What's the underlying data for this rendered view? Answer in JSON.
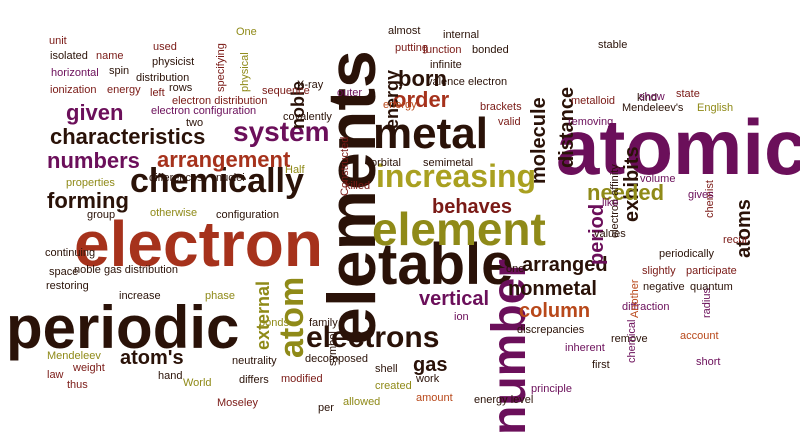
{
  "palette": {
    "background": "#ffffff",
    "purple": "#6b0f5a",
    "magenta": "#8a1a6c",
    "dark_red": "#7a1a16",
    "brick": "#a6321c",
    "rust": "#b8481a",
    "dark_brown": "#2a1208",
    "olive": "#8f8a18",
    "olive_light": "#a9a020"
  },
  "words": [
    {
      "text": "elements",
      "color": "dark_brown",
      "size": 68,
      "bold": true,
      "vertical": true
    },
    {
      "text": "atomic",
      "color": "purple",
      "size": 78,
      "bold": true
    },
    {
      "text": "electron",
      "color": "brick",
      "size": 64,
      "bold": true
    },
    {
      "text": "periodic",
      "color": "dark_brown",
      "size": 60,
      "bold": true
    },
    {
      "text": "table",
      "color": "dark_brown",
      "size": 58,
      "bold": true
    },
    {
      "text": "element",
      "color": "olive",
      "size": 46,
      "bold": true
    },
    {
      "text": "metal",
      "color": "dark_brown",
      "size": 44,
      "bold": true
    },
    {
      "text": "number",
      "color": "purple",
      "size": 48,
      "bold": true,
      "vertical": true
    },
    {
      "text": "increasing",
      "color": "olive_light",
      "size": 32,
      "bold": true
    },
    {
      "text": "chemically",
      "color": "dark_brown",
      "size": 34,
      "bold": true
    },
    {
      "text": "electrons",
      "color": "dark_brown",
      "size": 30,
      "bold": true
    },
    {
      "text": "atom",
      "color": "olive",
      "size": 34,
      "bold": true,
      "vertical": true
    },
    {
      "text": "characteristics",
      "color": "dark_brown",
      "size": 22,
      "bold": true
    },
    {
      "text": "system",
      "color": "purple",
      "size": 28,
      "bold": true
    },
    {
      "text": "arrangement",
      "color": "brick",
      "size": 22,
      "bold": true
    },
    {
      "text": "numbers",
      "color": "purple",
      "size": 22,
      "bold": true
    },
    {
      "text": "given",
      "color": "purple",
      "size": 22,
      "bold": true
    },
    {
      "text": "born",
      "color": "dark_brown",
      "size": 22,
      "bold": true
    },
    {
      "text": "order",
      "color": "brick",
      "size": 22,
      "bold": true
    },
    {
      "text": "forming",
      "color": "dark_brown",
      "size": 22,
      "bold": true
    },
    {
      "text": "behaves",
      "color": "dark_red",
      "size": 20,
      "bold": true
    },
    {
      "text": "exhibits",
      "color": "dark_brown",
      "size": 20,
      "bold": true
    },
    {
      "text": "needed",
      "color": "olive",
      "size": 22,
      "bold": true
    },
    {
      "text": "arranged",
      "color": "dark_brown",
      "size": 20,
      "bold": true
    },
    {
      "text": "nonmetal",
      "color": "dark_brown",
      "size": 20,
      "bold": true
    },
    {
      "text": "column",
      "color": "rust",
      "size": 20,
      "bold": true
    },
    {
      "text": "vertical",
      "color": "purple",
      "size": 20,
      "bold": true
    },
    {
      "text": "atom's",
      "color": "dark_brown",
      "size": 20,
      "bold": true
    },
    {
      "text": "gas",
      "color": "dark_brown",
      "size": 20,
      "bold": true
    },
    {
      "text": "molecule",
      "color": "dark_brown",
      "size": 20,
      "bold": true,
      "vertical": true
    },
    {
      "text": "distance",
      "color": "dark_brown",
      "size": 20,
      "bold": true,
      "vertical": true
    },
    {
      "text": "period",
      "color": "purple",
      "size": 20,
      "bold": true,
      "vertical": true
    },
    {
      "text": "atoms",
      "color": "dark_brown",
      "size": 20,
      "bold": true,
      "vertical": true
    },
    {
      "text": "noble",
      "color": "dark_brown",
      "size": 18,
      "bold": true,
      "vertical": true
    },
    {
      "text": "energy",
      "color": "dark_brown",
      "size": 18,
      "bold": true,
      "vertical": true
    },
    {
      "text": "external",
      "color": "olive",
      "size": 18,
      "bold": true,
      "vertical": true
    },
    {
      "text": "outer",
      "color": "purple",
      "size": 11
    },
    {
      "text": "unit",
      "color": "dark_red",
      "size": 11
    },
    {
      "text": "isolated",
      "color": "dark_brown",
      "size": 11
    },
    {
      "text": "name",
      "color": "dark_red",
      "size": 11
    },
    {
      "text": "used",
      "color": "dark_red",
      "size": 11
    },
    {
      "text": "physicist",
      "color": "dark_brown",
      "size": 11
    },
    {
      "text": "horizontal",
      "color": "purple",
      "size": 11
    },
    {
      "text": "spin",
      "color": "dark_brown",
      "size": 11
    },
    {
      "text": "ionization",
      "color": "dark_red",
      "size": 11
    },
    {
      "text": "energy",
      "color": "dark_red",
      "size": 11
    },
    {
      "text": "left",
      "color": "dark_red",
      "size": 11
    },
    {
      "text": "distribution",
      "color": "dark_brown",
      "size": 11
    },
    {
      "text": "rows",
      "color": "dark_brown",
      "size": 11
    },
    {
      "text": "electron distribution",
      "color": "dark_red",
      "size": 11
    },
    {
      "text": "electron configuration",
      "color": "purple",
      "size": 11
    },
    {
      "text": "two",
      "color": "dark_brown",
      "size": 11
    },
    {
      "text": "Half",
      "color": "olive",
      "size": 11
    },
    {
      "text": "differences",
      "color": "dark_brown",
      "size": 11
    },
    {
      "text": "nuclei",
      "color": "dark_brown",
      "size": 11
    },
    {
      "text": "properties",
      "color": "olive",
      "size": 11
    },
    {
      "text": "group",
      "color": "dark_brown",
      "size": 11
    },
    {
      "text": "otherwise",
      "color": "olive",
      "size": 11
    },
    {
      "text": "configuration",
      "color": "dark_brown",
      "size": 11
    },
    {
      "text": "continuing",
      "color": "dark_brown",
      "size": 11
    },
    {
      "text": "space",
      "color": "dark_brown",
      "size": 11
    },
    {
      "text": "noble gas distribution",
      "color": "dark_brown",
      "size": 11
    },
    {
      "text": "restoring",
      "color": "dark_brown",
      "size": 11
    },
    {
      "text": "increase",
      "color": "dark_brown",
      "size": 11
    },
    {
      "text": "phase",
      "color": "olive",
      "size": 11
    },
    {
      "text": "bonds",
      "color": "olive",
      "size": 11
    },
    {
      "text": "family",
      "color": "dark_brown",
      "size": 11
    },
    {
      "text": "Mendeleev",
      "color": "olive",
      "size": 11
    },
    {
      "text": "law",
      "color": "dark_red",
      "size": 11
    },
    {
      "text": "weight",
      "color": "dark_red",
      "size": 11
    },
    {
      "text": "thus",
      "color": "dark_red",
      "size": 11
    },
    {
      "text": "hand",
      "color": "dark_brown",
      "size": 11
    },
    {
      "text": "World",
      "color": "olive",
      "size": 11
    },
    {
      "text": "Moseley",
      "color": "dark_red",
      "size": 11
    },
    {
      "text": "neutrality",
      "color": "dark_brown",
      "size": 11
    },
    {
      "text": "differs",
      "color": "dark_brown",
      "size": 11
    },
    {
      "text": "modified",
      "color": "dark_red",
      "size": 11
    },
    {
      "text": "symbol",
      "color": "dark_brown",
      "size": 11
    },
    {
      "text": "decomposed",
      "color": "dark_brown",
      "size": 11
    },
    {
      "text": "per",
      "color": "dark_brown",
      "size": 11
    },
    {
      "text": "allowed",
      "color": "olive",
      "size": 11
    },
    {
      "text": "created",
      "color": "olive",
      "size": 11
    },
    {
      "text": "shell",
      "color": "dark_brown",
      "size": 11
    },
    {
      "text": "amount",
      "color": "rust",
      "size": 11
    },
    {
      "text": "work",
      "color": "dark_brown",
      "size": 11
    },
    {
      "text": "energy level",
      "color": "dark_brown",
      "size": 11
    },
    {
      "text": "ion",
      "color": "purple",
      "size": 11
    },
    {
      "text": "one",
      "color": "dark_brown",
      "size": 11
    },
    {
      "text": "discrepancies",
      "color": "dark_brown",
      "size": 11
    },
    {
      "text": "principle",
      "color": "purple",
      "size": 11
    },
    {
      "text": "inherent",
      "color": "purple",
      "size": 11
    },
    {
      "text": "first",
      "color": "dark_brown",
      "size": 11
    },
    {
      "text": "remove",
      "color": "dark_brown",
      "size": 11
    },
    {
      "text": "chemical",
      "color": "purple",
      "size": 11
    },
    {
      "text": "diffraction",
      "color": "purple",
      "size": 11
    },
    {
      "text": "Another",
      "color": "rust",
      "size": 11
    },
    {
      "text": "account",
      "color": "rust",
      "size": 11
    },
    {
      "text": "radius",
      "color": "purple",
      "size": 11
    },
    {
      "text": "short",
      "color": "purple",
      "size": 11
    },
    {
      "text": "negative",
      "color": "dark_brown",
      "size": 11
    },
    {
      "text": "quantum",
      "color": "dark_brown",
      "size": 11
    },
    {
      "text": "slightly",
      "color": "dark_red",
      "size": 11
    },
    {
      "text": "participate",
      "color": "dark_red",
      "size": 11
    },
    {
      "text": "periodically",
      "color": "dark_brown",
      "size": 11
    },
    {
      "text": "electron affinity",
      "color": "dark_brown",
      "size": 11
    },
    {
      "text": "values",
      "color": "dark_brown",
      "size": 11
    },
    {
      "text": "like",
      "color": "purple",
      "size": 11
    },
    {
      "text": "recur",
      "color": "dark_red",
      "size": 11
    },
    {
      "text": "chemist",
      "color": "dark_red",
      "size": 11
    },
    {
      "text": "gives",
      "color": "purple",
      "size": 11
    },
    {
      "text": "volume",
      "color": "purple",
      "size": 11
    },
    {
      "text": "kind",
      "color": "dark_brown",
      "size": 11
    },
    {
      "text": "Mendeleev's",
      "color": "dark_brown",
      "size": 11
    },
    {
      "text": "English",
      "color": "olive",
      "size": 11
    },
    {
      "text": "state",
      "color": "dark_red",
      "size": 11
    },
    {
      "text": "removing",
      "color": "purple",
      "size": 11
    },
    {
      "text": "stable",
      "color": "dark_brown",
      "size": 11
    },
    {
      "text": "show",
      "color": "purple",
      "size": 11
    },
    {
      "text": "metalloid",
      "color": "dark_red",
      "size": 11
    },
    {
      "text": "brackets",
      "color": "dark_red",
      "size": 11
    },
    {
      "text": "valid",
      "color": "dark_red",
      "size": 11
    },
    {
      "text": "orbital",
      "color": "dark_brown",
      "size": 11
    },
    {
      "text": "semimetal",
      "color": "dark_brown",
      "size": 11
    },
    {
      "text": "killed",
      "color": "dark_red",
      "size": 11
    },
    {
      "text": "Constructed",
      "color": "dark_red",
      "size": 11
    },
    {
      "text": "infinite",
      "color": "dark_brown",
      "size": 11
    },
    {
      "text": "valence electron",
      "color": "dark_brown",
      "size": 11
    },
    {
      "text": "function",
      "color": "dark_red",
      "size": 11
    },
    {
      "text": "bonded",
      "color": "dark_brown",
      "size": 11
    },
    {
      "text": "internal",
      "color": "dark_brown",
      "size": 11
    },
    {
      "text": "almost",
      "color": "dark_brown",
      "size": 11
    },
    {
      "text": "putting",
      "color": "dark_red",
      "size": 11
    },
    {
      "text": "energy",
      "color": "rust",
      "size": 11
    },
    {
      "text": "One",
      "color": "olive",
      "size": 11
    },
    {
      "text": "X-ray",
      "color": "dark_brown",
      "size": 11
    },
    {
      "text": "covalently",
      "color": "dark_brown",
      "size": 11
    },
    {
      "text": "sequence",
      "color": "dark_red",
      "size": 11
    },
    {
      "text": "physical",
      "color": "olive",
      "size": 11
    },
    {
      "text": "specifying",
      "color": "dark_red",
      "size": 11
    }
  ]
}
